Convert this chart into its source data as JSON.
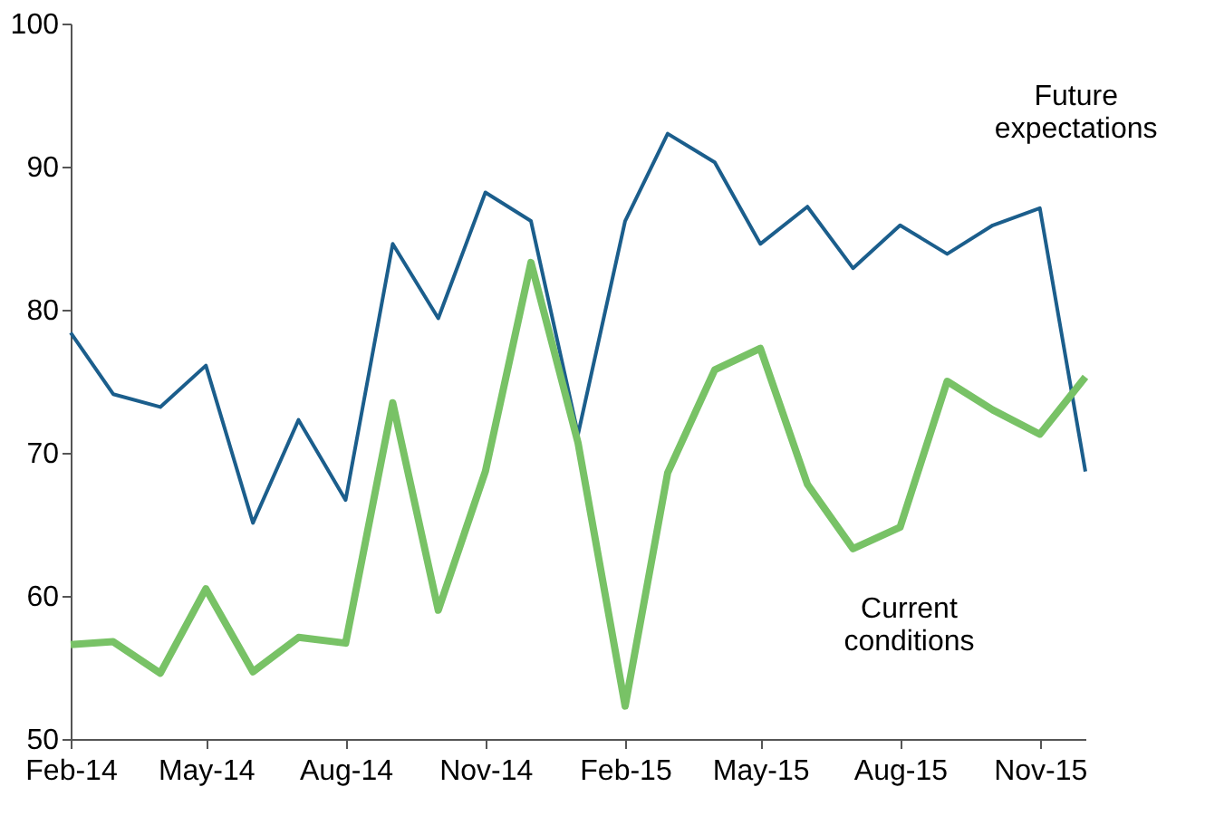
{
  "chart_data": {
    "type": "line",
    "x": [
      "2014-02",
      "2014-03",
      "2014-04",
      "2014-05",
      "2014-06",
      "2014-07",
      "2014-08",
      "2014-09",
      "2014-10",
      "2014-11",
      "2014-12",
      "2015-01",
      "2015-02",
      "2015-03",
      "2015-04",
      "2015-05",
      "2015-06",
      "2015-07",
      "2015-08",
      "2015-09",
      "2015-10",
      "2015-11",
      "2015-12"
    ],
    "series": [
      {
        "name": "Future expectations",
        "color": "#1b5e8c",
        "values": [
          78.4,
          74.1,
          73.2,
          76.1,
          65.1,
          72.3,
          66.7,
          84.6,
          79.4,
          88.2,
          86.2,
          71.3,
          86.2,
          92.3,
          90.3,
          84.6,
          87.2,
          82.9,
          85.9,
          83.9,
          85.9,
          87.1,
          68.7
        ]
      },
      {
        "name": "Current conditions",
        "color": "#78c266",
        "values": [
          56.6,
          56.8,
          54.6,
          60.5,
          54.7,
          57.1,
          56.7,
          73.5,
          59.0,
          68.7,
          83.3,
          70.7,
          52.3,
          68.6,
          75.8,
          77.3,
          67.8,
          63.3,
          64.8,
          75.0,
          73.0,
          71.3,
          75.3
        ]
      }
    ],
    "xlim": [
      "2014-02",
      "2015-12"
    ],
    "xticks": [
      {
        "value": "2014-02",
        "label": "Feb-14"
      },
      {
        "value": "2014-05",
        "label": "May-14"
      },
      {
        "value": "2014-08",
        "label": "Aug-14"
      },
      {
        "value": "2014-11",
        "label": "Nov-14"
      },
      {
        "value": "2015-02",
        "label": "Feb-15"
      },
      {
        "value": "2015-05",
        "label": "May-15"
      },
      {
        "value": "2015-08",
        "label": "Aug-15"
      },
      {
        "value": "2015-11",
        "label": "Nov-15"
      }
    ],
    "ylim": [
      50,
      100
    ],
    "yticks": [
      50,
      60,
      70,
      80,
      90,
      100
    ],
    "grid": false,
    "legend": false,
    "marker": "none",
    "line_style": "solid"
  }
}
